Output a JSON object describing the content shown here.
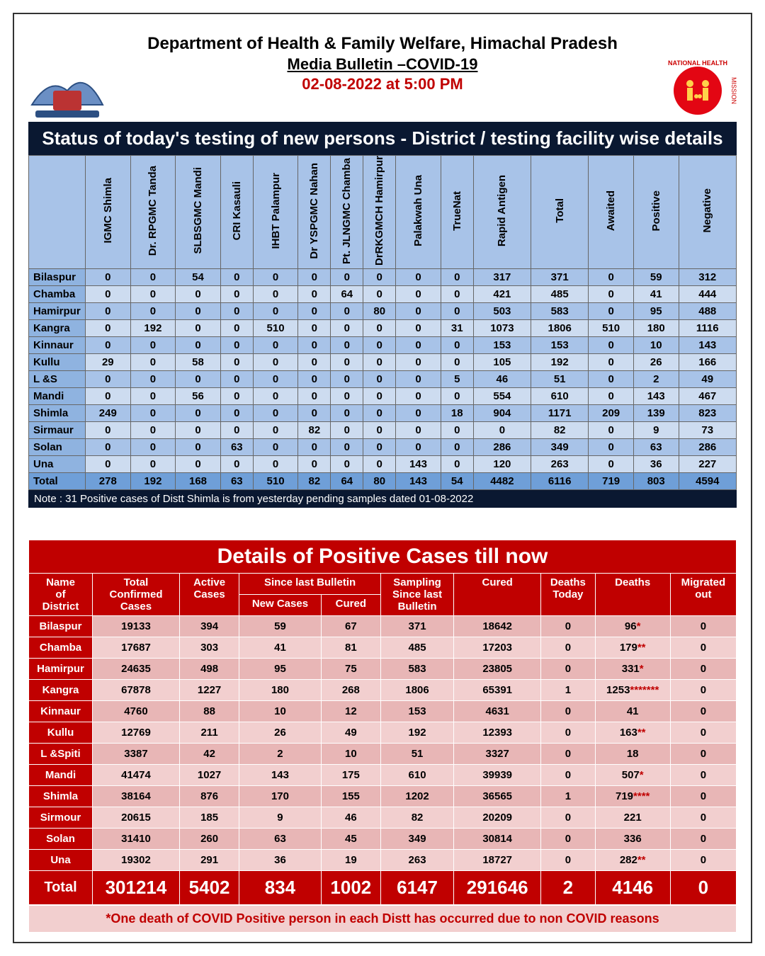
{
  "header": {
    "dept": "Department of Health & Family Welfare, Himachal Pradesh",
    "sub": "Media Bulletin –COVID-19",
    "datetime": "02-08-2022 at 5:00 PM"
  },
  "table1": {
    "banner": "Status of today's testing of new persons - District / testing facility wise details",
    "cols": [
      "",
      "IGMC Shimla",
      "Dr. RPGMC Tanda",
      "SLBSGMC Mandi",
      "CRI Kasauli",
      "IHBT Palampur",
      "Dr YSPGMC Nahan",
      "Pt. JLNGMC Chamba",
      "DrRKGMCH Hamirpur",
      "Palakwah Una",
      "TrueNat",
      "Rapid  Antigen",
      "Total",
      "Awaited",
      "Positive",
      "Negative"
    ],
    "rows": [
      {
        "d": "Bilaspur",
        "v": [
          0,
          0,
          54,
          0,
          0,
          0,
          0,
          0,
          0,
          0,
          317,
          371,
          0,
          59,
          312
        ]
      },
      {
        "d": "Chamba",
        "v": [
          0,
          0,
          0,
          0,
          0,
          0,
          64,
          0,
          0,
          0,
          421,
          485,
          0,
          41,
          444
        ]
      },
      {
        "d": "Hamirpur",
        "v": [
          0,
          0,
          0,
          0,
          0,
          0,
          0,
          80,
          0,
          0,
          503,
          583,
          0,
          95,
          488
        ]
      },
      {
        "d": "Kangra",
        "v": [
          0,
          192,
          0,
          0,
          510,
          0,
          0,
          0,
          0,
          31,
          1073,
          1806,
          510,
          180,
          1116
        ]
      },
      {
        "d": "Kinnaur",
        "v": [
          0,
          0,
          0,
          0,
          0,
          0,
          0,
          0,
          0,
          0,
          153,
          153,
          0,
          10,
          143
        ]
      },
      {
        "d": "Kullu",
        "v": [
          29,
          0,
          58,
          0,
          0,
          0,
          0,
          0,
          0,
          0,
          105,
          192,
          0,
          26,
          166
        ]
      },
      {
        "d": "L &S",
        "v": [
          0,
          0,
          0,
          0,
          0,
          0,
          0,
          0,
          0,
          5,
          46,
          51,
          0,
          2,
          49
        ]
      },
      {
        "d": "Mandi",
        "v": [
          0,
          0,
          56,
          0,
          0,
          0,
          0,
          0,
          0,
          0,
          554,
          610,
          0,
          143,
          467
        ]
      },
      {
        "d": "Shimla",
        "v": [
          249,
          0,
          0,
          0,
          0,
          0,
          0,
          0,
          0,
          18,
          904,
          1171,
          209,
          139,
          823
        ]
      },
      {
        "d": "Sirmaur",
        "v": [
          0,
          0,
          0,
          0,
          0,
          82,
          0,
          0,
          0,
          0,
          0,
          82,
          0,
          9,
          73
        ]
      },
      {
        "d": "Solan",
        "v": [
          0,
          0,
          0,
          63,
          0,
          0,
          0,
          0,
          0,
          0,
          286,
          349,
          0,
          63,
          286
        ]
      },
      {
        "d": "Una",
        "v": [
          0,
          0,
          0,
          0,
          0,
          0,
          0,
          0,
          143,
          0,
          120,
          263,
          0,
          36,
          227
        ]
      }
    ],
    "total": {
      "d": "Total",
      "v": [
        278,
        192,
        168,
        63,
        510,
        82,
        64,
        80,
        143,
        54,
        4482,
        6116,
        719,
        803,
        4594
      ]
    },
    "note": "Note : 31 Positive cases of Distt Shimla is from yesterday pending samples dated 01-08-2022"
  },
  "table2": {
    "banner": "Details of Positive Cases till now",
    "head_top": [
      "Name of District",
      "Total Confirmed Cases",
      "Active Cases",
      "Since last Bulletin",
      "Sampling Since last Bulletin",
      "Cured",
      "Deaths Today",
      "Deaths",
      "Migrated out"
    ],
    "head_sub": [
      "New Cases",
      "Cured"
    ],
    "rows": [
      {
        "d": "Bilaspur",
        "v": [
          "19133",
          "394",
          "59",
          "67",
          "371",
          "18642",
          "0",
          "96*",
          "0"
        ]
      },
      {
        "d": "Chamba",
        "v": [
          "17687",
          "303",
          "41",
          "81",
          "485",
          "17203",
          "0",
          "179**",
          "0"
        ]
      },
      {
        "d": "Hamirpur",
        "v": [
          "24635",
          "498",
          "95",
          "75",
          "583",
          "23805",
          "0",
          "331*",
          "0"
        ]
      },
      {
        "d": "Kangra",
        "v": [
          "67878",
          "1227",
          "180",
          "268",
          "1806",
          "65391",
          "1",
          "1253*******",
          "0"
        ]
      },
      {
        "d": "Kinnaur",
        "v": [
          "4760",
          "88",
          "10",
          "12",
          "153",
          "4631",
          "0",
          "41",
          "0"
        ]
      },
      {
        "d": "Kullu",
        "v": [
          "12769",
          "211",
          "26",
          "49",
          "192",
          "12393",
          "0",
          "163**",
          "0"
        ]
      },
      {
        "d": "L &Spiti",
        "v": [
          "3387",
          "42",
          "2",
          "10",
          "51",
          "3327",
          "0",
          "18",
          "0"
        ]
      },
      {
        "d": "Mandi",
        "v": [
          "41474",
          "1027",
          "143",
          "175",
          "610",
          "39939",
          "0",
          "507*",
          "0"
        ]
      },
      {
        "d": "Shimla",
        "v": [
          "38164",
          "876",
          "170",
          "155",
          "1202",
          "36565",
          "1",
          "719****",
          "0"
        ]
      },
      {
        "d": "Sirmour",
        "v": [
          "20615",
          "185",
          "9",
          "46",
          "82",
          "20209",
          "0",
          "221",
          "0"
        ]
      },
      {
        "d": "Solan",
        "v": [
          "31410",
          "260",
          "63",
          "45",
          "349",
          "30814",
          "0",
          "336",
          "0"
        ]
      },
      {
        "d": "Una",
        "v": [
          "19302",
          "291",
          "36",
          "19",
          "263",
          "18727",
          "0",
          "282**",
          "0"
        ]
      }
    ],
    "total": {
      "d": "Total",
      "v": [
        "301214",
        "5402",
        "834",
        "1002",
        "6147",
        "291646",
        "2",
        "4146",
        "0"
      ]
    },
    "footnote": "*One death of COVID Positive person in each Distt has occurred due to non COVID reasons"
  }
}
